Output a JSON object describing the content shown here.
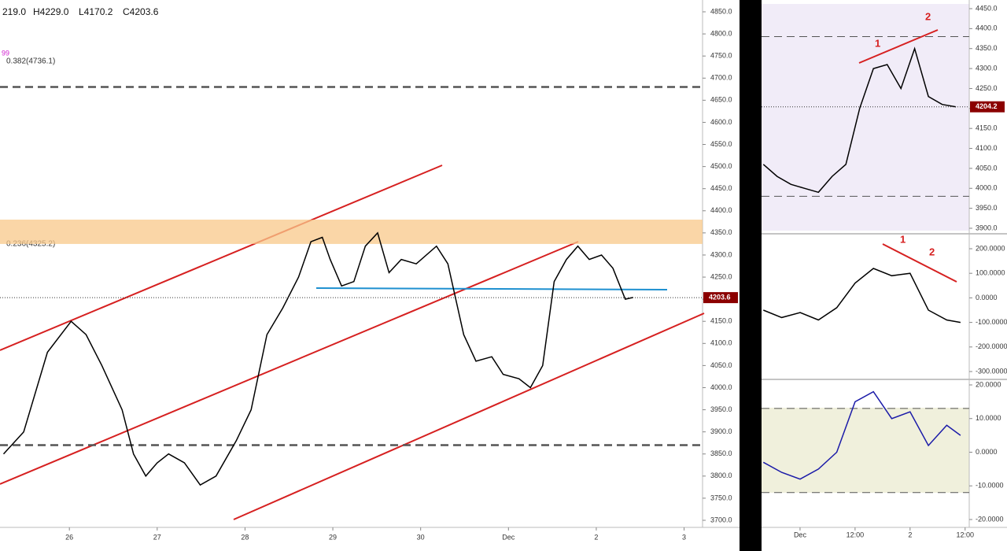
{
  "header": [
    "219.0",
    "H4229.0",
    "L4170.2",
    "C4203.6"
  ],
  "chart_data": [
    {
      "type": "line",
      "annotations": [
        "99",
        "0.382(4736.1)",
        "0.236(4325.2)"
      ],
      "color": "#000000",
      "x": [
        0.25,
        0.48,
        0.75,
        1.02,
        1.19,
        1.37,
        1.6,
        1.73,
        1.87,
        2.0,
        2.13,
        2.31,
        2.49,
        2.67,
        2.9,
        3.07,
        3.25,
        3.43,
        3.61,
        3.75,
        3.88,
        3.97,
        4.1,
        4.24,
        4.37,
        4.51,
        4.64,
        4.78,
        4.95,
        5.18,
        5.31,
        5.49,
        5.63,
        5.81,
        5.94,
        6.12,
        6.25,
        6.39,
        6.52,
        6.66,
        6.79,
        6.92,
        7.06,
        7.19,
        7.33,
        7.42
      ],
      "values": [
        3850,
        3900,
        4080,
        4150,
        4120,
        4050,
        3950,
        3850,
        3800,
        3830,
        3850,
        3830,
        3780,
        3800,
        3880,
        3950,
        4120,
        4180,
        4250,
        4330,
        4340,
        4290,
        4230,
        4240,
        4320,
        4350,
        4260,
        4290,
        4280,
        4320,
        4280,
        4120,
        4060,
        4070,
        4030,
        4020,
        4000,
        4050,
        4240,
        4290,
        4320,
        4290,
        4300,
        4270,
        4200,
        4204
      ],
      "hlines": [
        4680,
        3870
      ],
      "band": [
        4325,
        4380
      ],
      "last_price": 4203.6,
      "xlim": [
        0.21,
        8.21
      ],
      "xticks": [
        {
          "value": 1,
          "label": "26"
        },
        {
          "value": 2,
          "label": "27"
        },
        {
          "value": 3,
          "label": "28"
        },
        {
          "value": 4,
          "label": "29"
        },
        {
          "value": 5,
          "label": "30"
        },
        {
          "value": 6,
          "label": "Dec"
        },
        {
          "value": 7,
          "label": "2"
        },
        {
          "value": 8,
          "label": "3"
        }
      ],
      "ylim": [
        3700,
        4850
      ],
      "yticks": [
        {
          "value": 3700,
          "label": "3700.0"
        },
        {
          "value": 3750,
          "label": "3750.0"
        },
        {
          "value": 3800,
          "label": "3800.0"
        },
        {
          "value": 3850,
          "label": "3850.0"
        },
        {
          "value": 3900,
          "label": "3900.0"
        },
        {
          "value": 3950,
          "label": "3950.0"
        },
        {
          "value": 4000,
          "label": "4000.0"
        },
        {
          "value": 4050,
          "label": "4050.0"
        },
        {
          "value": 4100,
          "label": "4100.0"
        },
        {
          "value": 4150,
          "label": "4150.0"
        },
        {
          "value": 4200,
          "label": "4200.0"
        },
        {
          "value": 4250,
          "label": "4250.0"
        },
        {
          "value": 4300,
          "label": "4300.0"
        },
        {
          "value": 4350,
          "label": "4350.0"
        },
        {
          "value": 4400,
          "label": "4400.0"
        },
        {
          "value": 4450,
          "label": "4450.0"
        },
        {
          "value": 4500,
          "label": "4500.0"
        },
        {
          "value": 4550,
          "label": "4550.0"
        },
        {
          "value": 4600,
          "label": "4600.0"
        },
        {
          "value": 4650,
          "label": "4650.0"
        },
        {
          "value": 4700,
          "label": "4700.0"
        },
        {
          "value": 4750,
          "label": "4750.0"
        },
        {
          "value": 4800,
          "label": "4800.0"
        },
        {
          "value": 4850,
          "label": "4850.0"
        }
      ]
    },
    {
      "type": "line",
      "annotations": [
        "1",
        "2"
      ],
      "color": "#000000",
      "x": [
        -8,
        -5,
        -2,
        1,
        4,
        7,
        10,
        13,
        16,
        19,
        22,
        25,
        28,
        31,
        34
      ],
      "values": [
        4060,
        4030,
        4010,
        4000,
        3990,
        4030,
        4060,
        4200,
        4300,
        4310,
        4250,
        4350,
        4230,
        4210,
        4204.2
      ],
      "hlines": [
        4380,
        3980
      ],
      "last_price": 4204.2,
      "xlim": [
        -8.4,
        36.9
      ],
      "ylim": [
        3900,
        4450
      ],
      "yticks": [
        {
          "value": 3900,
          "label": "3900.0"
        },
        {
          "value": 3950,
          "label": "3950.0"
        },
        {
          "value": 4000,
          "label": "4000.0"
        },
        {
          "value": 4050,
          "label": "4050.0"
        },
        {
          "value": 4100,
          "label": "4100.0"
        },
        {
          "value": 4150,
          "label": "4150.0"
        },
        {
          "value": 4200,
          "label": "4200.0"
        },
        {
          "value": 4250,
          "label": "4250.0"
        },
        {
          "value": 4300,
          "label": "4300.0"
        },
        {
          "value": 4350,
          "label": "4350.0"
        },
        {
          "value": 4400,
          "label": "4400.0"
        },
        {
          "value": 4450,
          "label": "4450.0"
        }
      ]
    },
    {
      "type": "line",
      "annotations": [
        "1",
        "2"
      ],
      "color": "#000000",
      "x": [
        -8,
        -4,
        0,
        4,
        8,
        12,
        16,
        20,
        24,
        28,
        32,
        35
      ],
      "values": [
        -50,
        -80,
        -60,
        -90,
        -40,
        60,
        120,
        90,
        100,
        -50,
        -90,
        -100
      ],
      "xlim": [
        -8.4,
        36.9
      ],
      "ylim": [
        -300,
        200
      ],
      "yticks": [
        {
          "value": -300,
          "label": "-300.0000"
        },
        {
          "value": -200,
          "label": "-200.0000"
        },
        {
          "value": -100,
          "label": "-100.0000"
        },
        {
          "value": 0,
          "label": "0.0000"
        },
        {
          "value": 100,
          "label": "100.0000"
        },
        {
          "value": 200,
          "label": "200.0000"
        }
      ]
    },
    {
      "type": "line",
      "color": "#1a1aa8",
      "x": [
        -8,
        -4,
        0,
        4,
        8,
        12,
        16,
        20,
        24,
        28,
        32,
        35
      ],
      "values": [
        -3,
        -6,
        -8,
        -5,
        0,
        15,
        18,
        10,
        12,
        2,
        8,
        5
      ],
      "hlines": [
        13,
        -12
      ],
      "xlim": [
        -8.4,
        36.9
      ],
      "xticks": [
        {
          "value": 0,
          "label": "Dec"
        },
        {
          "value": 12,
          "label": "12:00"
        },
        {
          "value": 24,
          "label": "2"
        },
        {
          "value": 36,
          "label": "12:00"
        }
      ],
      "ylim": [
        -20,
        20
      ],
      "yticks": [
        {
          "value": -20,
          "label": "-20.0000"
        },
        {
          "value": -10,
          "label": "-10.0000"
        },
        {
          "value": 0,
          "label": "0.0000"
        },
        {
          "value": 10,
          "label": "10.0000"
        },
        {
          "value": 20,
          "label": "20.0000"
        }
      ]
    }
  ]
}
